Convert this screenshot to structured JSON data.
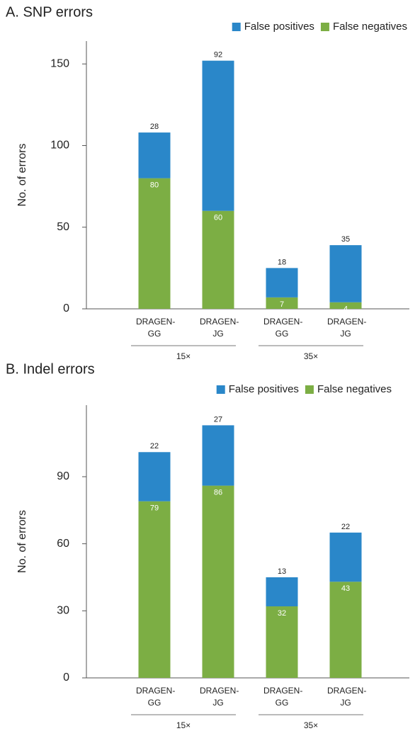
{
  "chart_data": [
    {
      "type": "bar",
      "stacked": true,
      "title": "A. SNP errors",
      "ylabel": "No. of errors",
      "categories": [
        "DRAGEN-GG",
        "DRAGEN-JG",
        "DRAGEN-GG",
        "DRAGEN-JG"
      ],
      "groups": [
        "15×",
        "35×"
      ],
      "series": [
        {
          "name": "False positives",
          "color": "#2a87c9",
          "values": [
            28,
            92,
            18,
            35
          ]
        },
        {
          "name": "False negatives",
          "color": "#7cae44",
          "values": [
            80,
            60,
            7,
            4
          ]
        }
      ],
      "ylim": [
        0,
        164
      ],
      "yticks": [
        0,
        50,
        100,
        150
      ]
    },
    {
      "type": "bar",
      "stacked": true,
      "title": "B. Indel errors",
      "ylabel": "No. of errors",
      "categories": [
        "DRAGEN-GG",
        "DRAGEN-JG",
        "DRAGEN-GG",
        "DRAGEN-JG"
      ],
      "groups": [
        "15×",
        "35×"
      ],
      "series": [
        {
          "name": "False positives",
          "color": "#2a87c9",
          "values": [
            22,
            27,
            13,
            22
          ]
        },
        {
          "name": "False negatives",
          "color": "#7cae44",
          "values": [
            79,
            86,
            32,
            43
          ]
        }
      ],
      "ylim": [
        0,
        122
      ],
      "yticks": [
        0,
        30,
        60,
        90
      ]
    }
  ]
}
